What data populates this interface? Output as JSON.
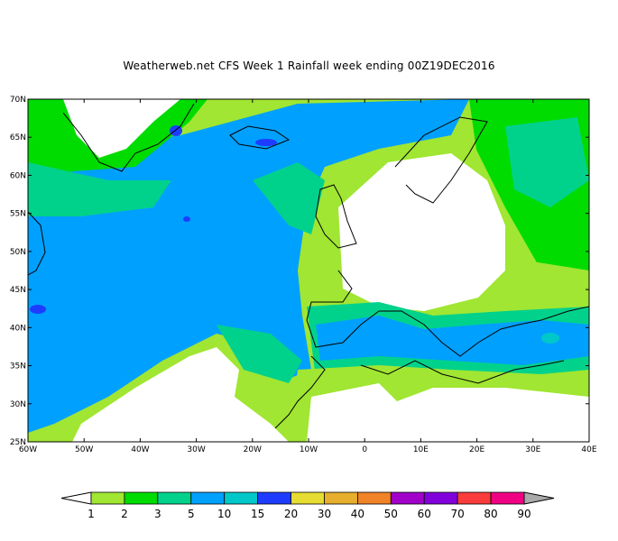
{
  "title": "Weatherweb.net CFS Week 1 Rainfall week ending 00Z19DEC2016",
  "map": {
    "lon_range": [
      -60,
      40
    ],
    "lat_range": [
      25,
      70
    ],
    "lon_labels": [
      "60W",
      "50W",
      "40W",
      "30W",
      "20W",
      "10W",
      "0",
      "10E",
      "20E",
      "30E",
      "40E"
    ],
    "lat_labels": [
      "25N",
      "30N",
      "35N",
      "40N",
      "45N",
      "50N",
      "55N",
      "60N",
      "65N",
      "70N"
    ]
  },
  "colorbar": {
    "labels": [
      "1",
      "2",
      "3",
      "5",
      "10",
      "15",
      "20",
      "30",
      "40",
      "50",
      "60",
      "70",
      "80",
      "90"
    ],
    "colors": [
      "#a0e632",
      "#00dc00",
      "#00d28c",
      "#00a0ff",
      "#00c8c8",
      "#1e3cff",
      "#e6dc32",
      "#e6af2d",
      "#f08228",
      "#a000c8",
      "#8200dc",
      "#fa3c3c",
      "#f00082"
    ],
    "under_color": "#ffffff",
    "over_color": "#aaaaaa"
  }
}
